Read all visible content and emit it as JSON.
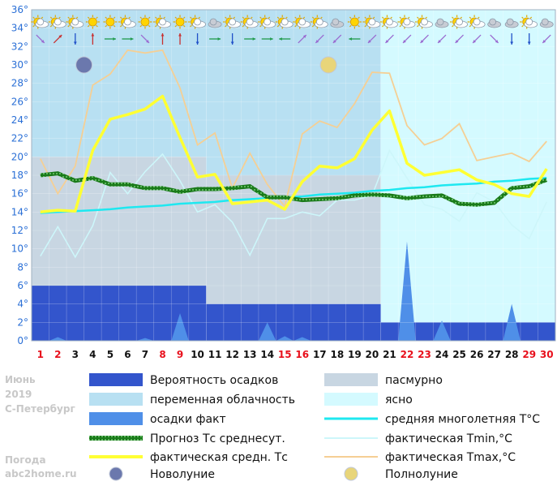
{
  "side_caption": {
    "month": "Июнь",
    "year": "2019",
    "city": "С-Петербург",
    "source_line1": "Погода",
    "source_line2": "abc2home.ru"
  },
  "chart_data": {
    "type": "line",
    "y_axis": {
      "min": 0,
      "max": 36,
      "step": 2,
      "unit": "°",
      "tick_labels": [
        "0°",
        "2°",
        "4°",
        "6°",
        "8°",
        "10°",
        "12°",
        "14°",
        "16°",
        "18°",
        "20°",
        "22°",
        "24°",
        "26°",
        "28°",
        "30°",
        "32°",
        "34°",
        "36°"
      ]
    },
    "days": [
      1,
      2,
      3,
      4,
      5,
      6,
      7,
      8,
      9,
      10,
      11,
      12,
      13,
      14,
      15,
      16,
      17,
      18,
      19,
      20,
      21,
      22,
      23,
      24,
      25,
      26,
      27,
      28,
      29,
      30
    ],
    "weekend_days": [
      1,
      2,
      8,
      9,
      15,
      16,
      22,
      23,
      29,
      30
    ],
    "colors": {
      "day_weekday": "#111111",
      "day_weekend": "#e8101c",
      "precip_probability": "#3355cc",
      "precip_actual": "#4f8fe8",
      "forecast_avg": "#1a7a1a",
      "actual_avg": "#ffff33",
      "climate_avg": "#1ee8f0",
      "tmin": "#cdf6fa",
      "tmax": "#f5cf94",
      "overcast": "#c8d6e2",
      "partly_cloudy": "#b8e0f2",
      "clear": "#d4faff",
      "new_moon": "#6b78ad",
      "full_moon": "#e8d57a"
    },
    "cloudiness_periods": [
      {
        "from_day": 1,
        "to_day": 10,
        "kind": "overcast",
        "cloud_top": 20,
        "cloud_bottom": 6,
        "sky": "partly_cloudy"
      },
      {
        "from_day": 11,
        "to_day": 20,
        "kind": "overcast",
        "cloud_top": 18,
        "cloud_bottom": 4,
        "sky": "partly_cloudy"
      },
      {
        "from_day": 21,
        "to_day": 30,
        "kind": "clear",
        "cloud_top": 18,
        "cloud_bottom": 2,
        "sky": "clear"
      }
    ],
    "precip_probability_periods": [
      {
        "from_day": 1,
        "to_day": 10,
        "value": 6
      },
      {
        "from_day": 11,
        "to_day": 20,
        "value": 4
      },
      {
        "from_day": 21,
        "to_day": 30,
        "value": 2
      }
    ],
    "precip_actual": [
      0,
      0.4,
      0,
      0,
      0,
      0,
      0.3,
      0,
      3.0,
      0,
      0,
      0,
      0,
      2.0,
      0.5,
      0.4,
      0,
      0,
      0,
      0,
      0,
      10.8,
      0,
      2.2,
      0,
      0,
      0,
      4.0,
      0,
      0
    ],
    "tmax": [
      19.8,
      16.0,
      19.0,
      27.8,
      29.0,
      31.6,
      31.3,
      31.6,
      27.5,
      21.3,
      22.6,
      16.6,
      20.4,
      17.0,
      14.6,
      22.5,
      23.9,
      23.2,
      25.8,
      29.2,
      29.1,
      23.4,
      21.3,
      22.0,
      23.6,
      19.6,
      20.0,
      20.4,
      19.5,
      21.7
    ],
    "tmin": [
      9.2,
      12.4,
      9.1,
      12.5,
      18.3,
      16.0,
      18.4,
      20.3,
      17.4,
      14.0,
      14.8,
      12.9,
      9.3,
      13.3,
      13.3,
      14.0,
      13.6,
      15.3,
      15.3,
      15.8,
      20.7,
      17.7,
      14.8,
      14.3,
      13.0,
      16.1,
      15.1,
      12.6,
      11.1,
      15.1
    ],
    "actual_avg": [
      14.0,
      14.2,
      14.1,
      20.7,
      24.1,
      24.6,
      25.2,
      26.6,
      22.1,
      17.8,
      18.1,
      14.9,
      15.1,
      15.3,
      14.3,
      17.3,
      19.0,
      18.8,
      19.8,
      22.9,
      25.0,
      19.3,
      18.0,
      18.3,
      18.6,
      17.5,
      17.0,
      16.0,
      15.7,
      18.7
    ],
    "forecast_avg": [
      18.0,
      18.2,
      17.4,
      17.7,
      17.0,
      17.0,
      16.6,
      16.6,
      16.2,
      16.5,
      16.5,
      16.6,
      16.8,
      15.6,
      15.6,
      15.3,
      15.4,
      15.5,
      15.8,
      15.9,
      15.8,
      15.5,
      15.7,
      15.8,
      14.9,
      14.8,
      15.0,
      16.6,
      16.8,
      17.5
    ],
    "climate_avg": [
      13.9,
      14.0,
      14.1,
      14.2,
      14.3,
      14.5,
      14.6,
      14.7,
      14.9,
      15.0,
      15.1,
      15.3,
      15.4,
      15.5,
      15.6,
      15.7,
      15.9,
      16.0,
      16.1,
      16.3,
      16.4,
      16.6,
      16.7,
      16.9,
      17.0,
      17.1,
      17.3,
      17.4,
      17.6,
      17.7
    ],
    "moon_phases": [
      {
        "day": 3,
        "phase": "new_moon"
      },
      {
        "day": 17,
        "phase": "full_moon"
      }
    ],
    "weather_icons": [
      "partly-cloudy",
      "partly-cloudy",
      "partly-cloudy",
      "sunny",
      "sunny",
      "partly-cloudy",
      "sunny",
      "partly-cloudy",
      "sunny",
      "partly-cloudy",
      "cloudy",
      "partly-cloudy",
      "partly-cloudy",
      "partly-cloudy",
      "partly-cloudy",
      "partly-cloudy",
      "partly-cloudy",
      "cloudy",
      "sunny",
      "partly-cloudy",
      "partly-cloudy",
      "partly-cloudy",
      "partly-cloudy",
      "cloudy",
      "partly-cloudy",
      "partly-cloudy",
      "cloudy",
      "cloudy",
      "partly-cloudy",
      "cloudy"
    ],
    "wind_arrows": [
      {
        "direction": "SE",
        "color": "#9a6ad0"
      },
      {
        "direction": "NE",
        "color": "#c83030"
      },
      {
        "direction": "S",
        "color": "#2050c8"
      },
      {
        "direction": "N",
        "color": "#c83030"
      },
      {
        "direction": "E",
        "color": "#1e9a4a"
      },
      {
        "direction": "E",
        "color": "#1e9a4a"
      },
      {
        "direction": "SE",
        "color": "#9a6ad0"
      },
      {
        "direction": "N",
        "color": "#c83030"
      },
      {
        "direction": "N",
        "color": "#c83030"
      },
      {
        "direction": "S",
        "color": "#2050c8"
      },
      {
        "direction": "E",
        "color": "#1e9a4a"
      },
      {
        "direction": "S",
        "color": "#2050c8"
      },
      {
        "direction": "E",
        "color": "#1e9a4a"
      },
      {
        "direction": "E",
        "color": "#1e9a4a"
      },
      {
        "direction": "W",
        "color": "#1e9a4a"
      },
      {
        "direction": "NE",
        "color": "#9a6ad0"
      },
      {
        "direction": "SW",
        "color": "#9a6ad0"
      },
      {
        "direction": "SW",
        "color": "#9a6ad0"
      },
      {
        "direction": "W",
        "color": "#1e9a4a"
      },
      {
        "direction": "SW",
        "color": "#9a6ad0"
      },
      {
        "direction": "SW",
        "color": "#9a6ad0"
      },
      {
        "direction": "SW",
        "color": "#9a6ad0"
      },
      {
        "direction": "SW",
        "color": "#9a6ad0"
      },
      {
        "direction": "SW",
        "color": "#9a6ad0"
      },
      {
        "direction": "SW",
        "color": "#9a6ad0"
      },
      {
        "direction": "SW",
        "color": "#9a6ad0"
      },
      {
        "direction": "SE",
        "color": "#9a6ad0"
      },
      {
        "direction": "S",
        "color": "#2050c8"
      },
      {
        "direction": "S",
        "color": "#2050c8"
      },
      {
        "direction": "SW",
        "color": "#9a6ad0"
      }
    ],
    "legend": [
      {
        "key": "precip_probability",
        "label": "Вероятность осадков",
        "symbol": "block"
      },
      {
        "key": "overcast",
        "label": "пасмурно",
        "symbol": "block"
      },
      {
        "key": "partly_cloudy",
        "label": "переменная облачность",
        "symbol": "block"
      },
      {
        "key": "clear",
        "label": "ясно",
        "symbol": "block"
      },
      {
        "key": "precip_actual",
        "label": "осадки факт",
        "symbol": "block"
      },
      {
        "key": "climate_avg",
        "label": "средняя многолетняя T°C",
        "symbol": "line"
      },
      {
        "key": "forecast_avg",
        "label": "Прогноз Тс среднесут.",
        "symbol": "dotted"
      },
      {
        "key": "tmin",
        "label": "фактическая Tmin,°C",
        "symbol": "line"
      },
      {
        "key": "actual_avg",
        "label": "фактическая средн. Тс",
        "symbol": "line"
      },
      {
        "key": "tmax",
        "label": "фактическая Tmax,°C",
        "symbol": "line"
      },
      {
        "key": "new_moon",
        "label": "Новолуние",
        "symbol": "moon"
      },
      {
        "key": "full_moon",
        "label": "Полнолуние",
        "symbol": "moon"
      }
    ]
  }
}
